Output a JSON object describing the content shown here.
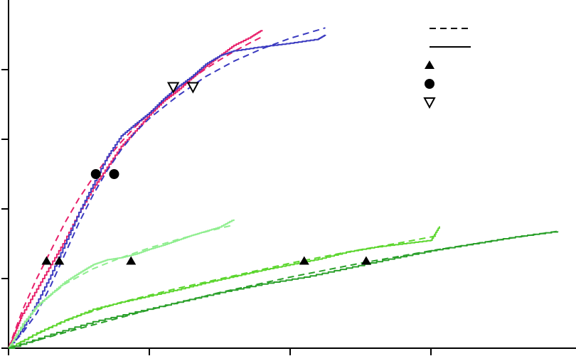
{
  "chart_data": {
    "type": "line",
    "title": "",
    "xlabel": "",
    "ylabel": "",
    "xlim": [
      0,
      4
    ],
    "ylim": [
      0,
      5
    ],
    "x_ticks": [
      0,
      1,
      2,
      3
    ],
    "y_ticks": [
      0,
      1,
      2,
      3,
      4
    ],
    "grid": false,
    "legend_position": "top-right",
    "legend_entries": [
      {
        "symbol": "dashed-line",
        "label": ""
      },
      {
        "symbol": "solid-line",
        "label": ""
      },
      {
        "symbol": "filled-triangle",
        "label": ""
      },
      {
        "symbol": "filled-circle",
        "label": ""
      },
      {
        "symbol": "open-down-triangle",
        "label": ""
      }
    ],
    "series": [
      {
        "color": "#e8206a",
        "style": "solid",
        "x": [
          0,
          0.05,
          0.1,
          0.2,
          0.3,
          0.4,
          0.5,
          0.6,
          0.7,
          0.8,
          0.9,
          1.0,
          1.1,
          1.2,
          1.3,
          1.4,
          1.5,
          1.6,
          1.72,
          1.8
        ],
        "y": [
          0,
          0.25,
          0.5,
          0.85,
          1.2,
          1.55,
          1.95,
          2.3,
          2.6,
          2.9,
          3.12,
          3.35,
          3.55,
          3.7,
          3.88,
          4.05,
          4.2,
          4.35,
          4.47,
          4.57
        ]
      },
      {
        "color": "#e8206a",
        "style": "dashed",
        "x": [
          0,
          0.1,
          0.2,
          0.3,
          0.4,
          0.5,
          0.6,
          0.7,
          0.8,
          0.9,
          1.0,
          1.1,
          1.2,
          1.3,
          1.4,
          1.5,
          1.6,
          1.72,
          1.8
        ],
        "y": [
          0,
          0.55,
          1.0,
          1.4,
          1.8,
          2.15,
          2.45,
          2.72,
          2.96,
          3.18,
          3.37,
          3.55,
          3.72,
          3.87,
          4.01,
          4.14,
          4.26,
          4.39,
          4.47
        ]
      },
      {
        "color": "#3a3ac0",
        "style": "solid",
        "x": [
          0,
          0.1,
          0.2,
          0.3,
          0.4,
          0.5,
          0.6,
          0.7,
          0.8,
          0.9,
          1.0,
          1.1,
          1.2,
          1.3,
          1.4,
          1.5,
          1.6,
          1.8,
          2.0,
          2.2,
          2.25
        ],
        "y": [
          0,
          0.28,
          0.65,
          1.05,
          1.5,
          1.95,
          2.35,
          2.75,
          3.05,
          3.22,
          3.38,
          3.58,
          3.75,
          3.9,
          4.08,
          4.2,
          4.27,
          4.33,
          4.38,
          4.44,
          4.5
        ]
      },
      {
        "color": "#3a3ac0",
        "style": "dashed",
        "x": [
          0,
          0.1,
          0.2,
          0.3,
          0.4,
          0.5,
          0.6,
          0.7,
          0.8,
          0.9,
          1.0,
          1.2,
          1.4,
          1.6,
          1.8,
          2.0,
          2.25
        ],
        "y": [
          0,
          0.22,
          0.5,
          0.9,
          1.35,
          1.8,
          2.2,
          2.55,
          2.85,
          3.1,
          3.3,
          3.62,
          3.9,
          4.12,
          4.3,
          4.45,
          4.6
        ]
      },
      {
        "color": "#90ee90",
        "style": "solid",
        "x": [
          0,
          0.1,
          0.2,
          0.3,
          0.4,
          0.5,
          0.6,
          0.7,
          0.8,
          0.9,
          1.0,
          1.1,
          1.2,
          1.3,
          1.4,
          1.5,
          1.6
        ],
        "y": [
          0,
          0.35,
          0.6,
          0.78,
          0.95,
          1.08,
          1.2,
          1.27,
          1.3,
          1.35,
          1.42,
          1.48,
          1.55,
          1.62,
          1.68,
          1.74,
          1.85
        ]
      },
      {
        "color": "#90ee90",
        "style": "dashed",
        "x": [
          0,
          0.2,
          0.4,
          0.6,
          0.8,
          1.0,
          1.2,
          1.4,
          1.6
        ],
        "y": [
          0,
          0.6,
          0.92,
          1.14,
          1.3,
          1.44,
          1.56,
          1.67,
          1.77
        ]
      },
      {
        "color": "#5cd62e",
        "style": "solid",
        "x": [
          0,
          0.2,
          0.4,
          0.6,
          0.8,
          1.0,
          1.2,
          1.4,
          1.6,
          1.8,
          2.0,
          2.2,
          2.4,
          2.6,
          2.8,
          3.0,
          3.06
        ],
        "y": [
          0,
          0.22,
          0.4,
          0.56,
          0.66,
          0.75,
          0.84,
          0.94,
          1.03,
          1.12,
          1.2,
          1.28,
          1.38,
          1.45,
          1.5,
          1.55,
          1.75
        ]
      },
      {
        "color": "#5cd62e",
        "style": "dashed",
        "x": [
          0,
          0.4,
          0.8,
          1.2,
          1.6,
          2.0,
          2.4,
          2.8,
          3.06
        ],
        "y": [
          0,
          0.4,
          0.66,
          0.86,
          1.04,
          1.22,
          1.38,
          1.52,
          1.62
        ]
      },
      {
        "color": "#2aa02a",
        "style": "solid",
        "x": [
          0,
          0.3,
          0.6,
          0.9,
          1.2,
          1.5,
          1.8,
          2.1,
          2.4,
          2.7,
          3.0,
          3.3,
          3.6,
          3.9
        ],
        "y": [
          0,
          0.2,
          0.38,
          0.52,
          0.66,
          0.8,
          0.92,
          1.02,
          1.15,
          1.28,
          1.4,
          1.5,
          1.6,
          1.68
        ]
      },
      {
        "color": "#2aa02a",
        "style": "dashed",
        "x": [
          0,
          0.5,
          1.0,
          1.5,
          2.0,
          2.5,
          3.0,
          3.5,
          3.9
        ],
        "y": [
          0,
          0.28,
          0.55,
          0.8,
          1.02,
          1.22,
          1.4,
          1.56,
          1.68
        ]
      }
    ],
    "markers": [
      {
        "shape": "filled-triangle",
        "x": 0.27,
        "y": 1.25
      },
      {
        "shape": "filled-triangle",
        "x": 0.36,
        "y": 1.25
      },
      {
        "shape": "filled-triangle",
        "x": 0.87,
        "y": 1.25
      },
      {
        "shape": "filled-triangle",
        "x": 2.1,
        "y": 1.25
      },
      {
        "shape": "filled-triangle",
        "x": 2.54,
        "y": 1.25
      },
      {
        "shape": "filled-circle",
        "x": 0.62,
        "y": 2.5
      },
      {
        "shape": "filled-circle",
        "x": 0.75,
        "y": 2.5
      },
      {
        "shape": "open-down-triangle",
        "x": 1.17,
        "y": 3.75
      },
      {
        "shape": "open-down-triangle",
        "x": 1.31,
        "y": 3.75
      }
    ]
  }
}
